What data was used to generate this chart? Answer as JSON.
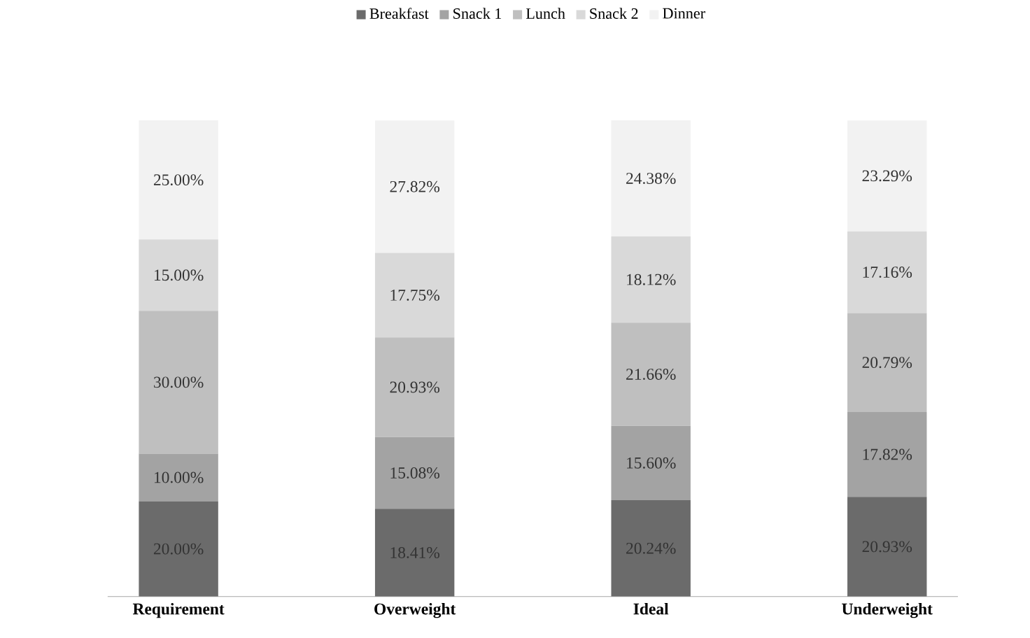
{
  "chart_data": {
    "type": "bar",
    "stacked": true,
    "legend": "top",
    "categories": [
      "Requirement",
      "Overweight",
      "Ideal",
      "Underweight"
    ],
    "series": [
      {
        "name": "Breakfast",
        "color": "#6b6b6b",
        "values": [
          20.0,
          18.41,
          20.24,
          20.93
        ],
        "value_labels": [
          "20.00%",
          "18.41%",
          "20.24%",
          "20.93%"
        ]
      },
      {
        "name": "Snack 1",
        "color": "#a3a3a3",
        "values": [
          10.0,
          15.08,
          15.6,
          17.82
        ],
        "value_labels": [
          "10.00%",
          "15.08%",
          "15.60%",
          "17.82%"
        ]
      },
      {
        "name": "Lunch",
        "color": "#bfbfbf",
        "values": [
          30.0,
          20.93,
          21.66,
          20.79
        ],
        "value_labels": [
          "30.00%",
          "20.93%",
          "21.66%",
          "20.79%"
        ]
      },
      {
        "name": "Snack 2",
        "color": "#d9d9d9",
        "values": [
          15.0,
          17.75,
          18.12,
          17.16
        ],
        "value_labels": [
          "15.00%",
          "17.75%",
          "18.12%",
          "17.16%"
        ]
      },
      {
        "name": "Dinner",
        "color": "#f2f2f2",
        "values": [
          25.0,
          27.82,
          24.38,
          23.29
        ],
        "value_labels": [
          "25.00%",
          "27.82%",
          "24.38%",
          "23.29%"
        ]
      }
    ]
  }
}
